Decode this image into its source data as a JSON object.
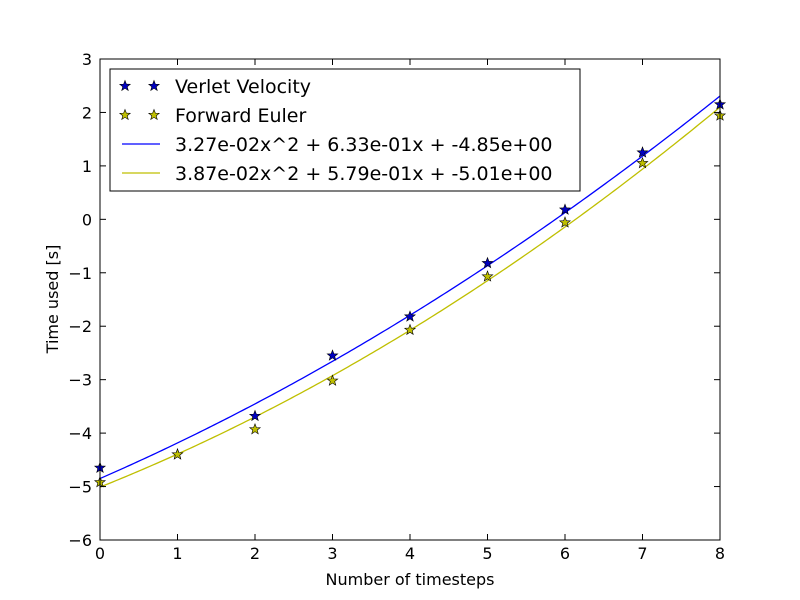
{
  "chart_data": {
    "type": "scatter",
    "title": "",
    "xlabel": "Number of timesteps",
    "ylabel": "Time used [s]",
    "xlim": [
      0,
      8
    ],
    "ylim": [
      -6,
      3
    ],
    "xticks": [
      0,
      1,
      2,
      3,
      4,
      5,
      6,
      7,
      8
    ],
    "yticks": [
      -6,
      -5,
      -4,
      -3,
      -2,
      -1,
      0,
      1,
      2,
      3
    ],
    "xtick_labels": [
      "0",
      "1",
      "2",
      "3",
      "4",
      "5",
      "6",
      "7",
      "8"
    ],
    "ytick_labels": [
      "−6",
      "−5",
      "−4",
      "−3",
      "−2",
      "−1",
      "0",
      "1",
      "2",
      "3"
    ],
    "grid": false,
    "legend_position": "upper-left",
    "series": [
      {
        "name": "Verlet Velocity",
        "kind": "marker",
        "marker": "star",
        "color": "#0000bf",
        "x": [
          0,
          1,
          2,
          3,
          4,
          5,
          6,
          7,
          8
        ],
        "y": [
          -4.65,
          -4.4,
          -3.68,
          -2.55,
          -1.82,
          -0.82,
          0.18,
          1.25,
          2.15
        ]
      },
      {
        "name": "Forward Euler",
        "kind": "marker",
        "marker": "star",
        "color": "#bfbf00",
        "x": [
          0,
          1,
          2,
          3,
          4,
          5,
          6,
          7,
          8
        ],
        "y": [
          -4.92,
          -4.4,
          -3.93,
          -3.02,
          -2.07,
          -1.07,
          -0.06,
          1.05,
          1.94
        ]
      },
      {
        "name": "3.27e-02x^2 + 6.33e-01x + -4.85e+00",
        "kind": "line",
        "color": "#0000ff",
        "coefficients": [
          0.0327,
          0.633,
          -4.85
        ]
      },
      {
        "name": "3.87e-02x^2 + 5.79e-01x + -5.01e+00",
        "kind": "line",
        "color": "#bfbf00",
        "coefficients": [
          0.0387,
          0.579,
          -5.01
        ]
      }
    ]
  }
}
